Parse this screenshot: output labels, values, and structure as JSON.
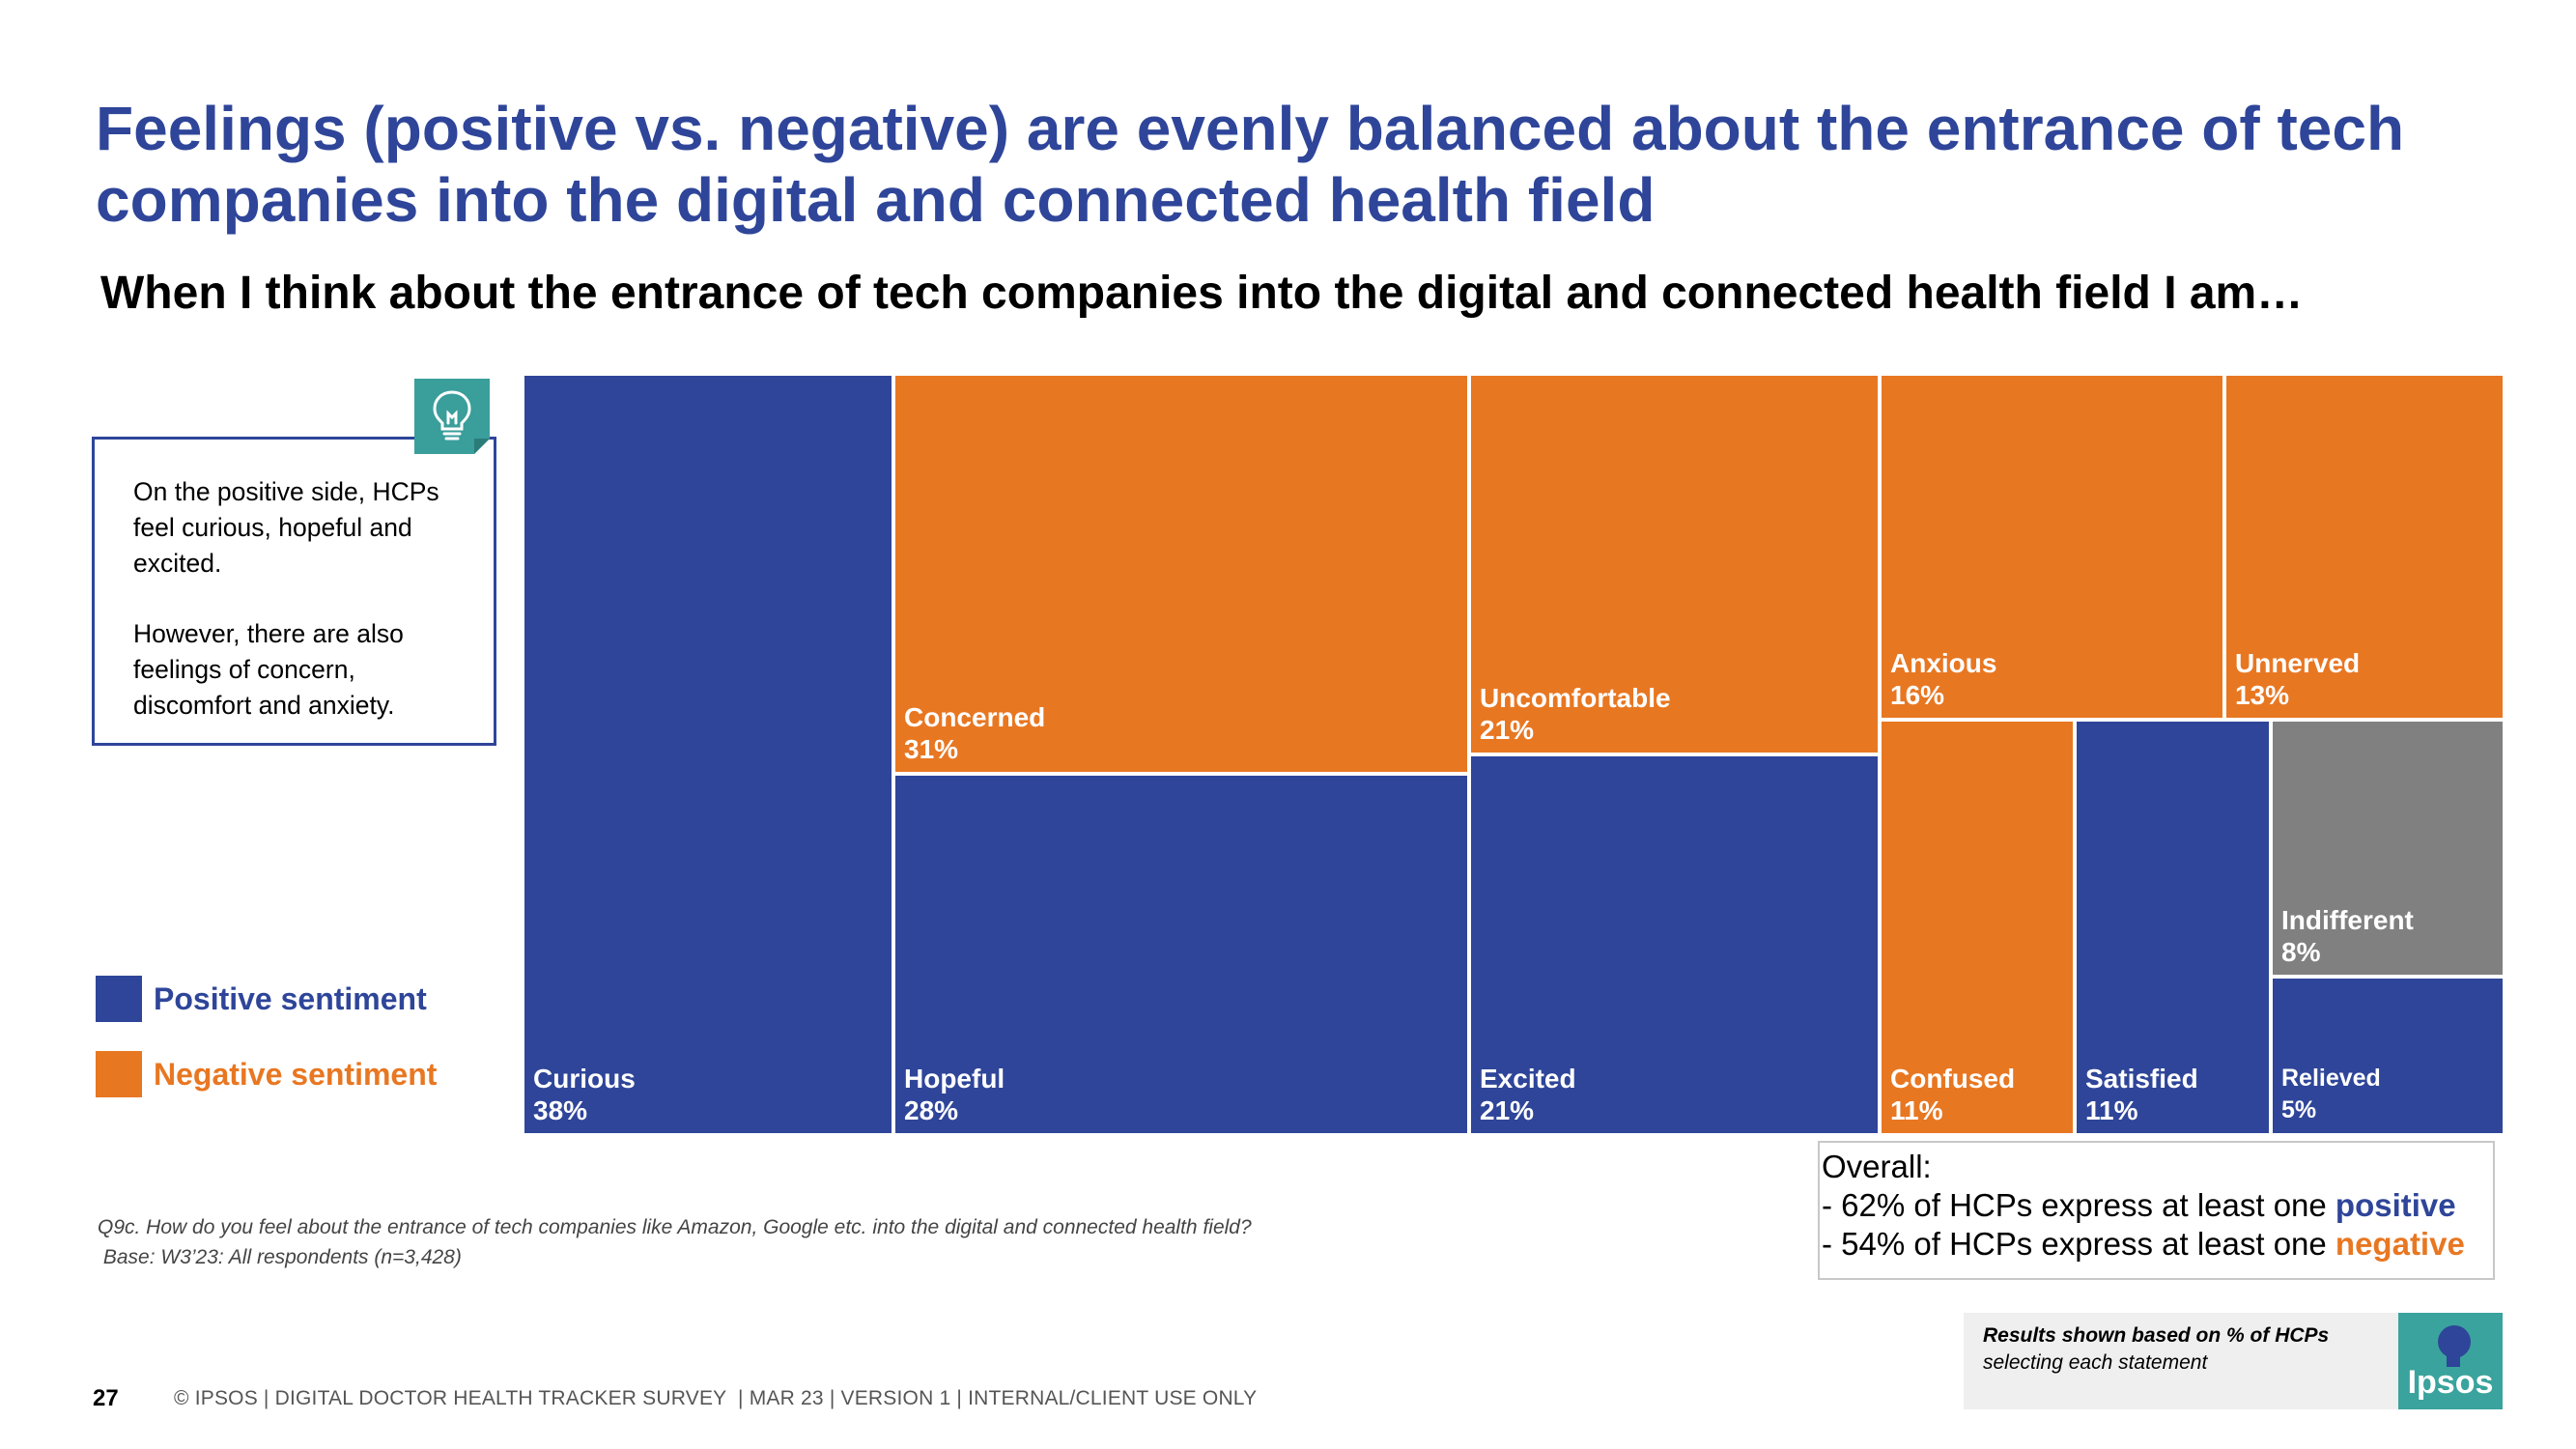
{
  "title": "Feelings (positive vs. negative) are evenly balanced about the entrance of tech companies into the digital and connected health field",
  "subtitle": "When I think about the entrance of tech companies into the digital and connected health field I am…",
  "callout": {
    "p1": "On the positive side, HCPs feel curious, hopeful and excited.",
    "p2": "However, there are also feelings of concern, discomfort and anxiety.",
    "icon": "lightbulb-icon"
  },
  "legend": {
    "positive": {
      "label": "Positive sentiment",
      "color": "#2E4599"
    },
    "negative": {
      "label": "Negative sentiment",
      "color": "#E87722"
    }
  },
  "colors": {
    "positive": "#2E4599",
    "negative": "#E87722",
    "neutral": "#808080"
  },
  "chart_data": {
    "type": "treemap",
    "unit": "% of HCPs",
    "items": [
      {
        "name": "Curious",
        "value": 38,
        "label": "38%",
        "sentiment": "positive"
      },
      {
        "name": "Concerned",
        "value": 31,
        "label": "31%",
        "sentiment": "negative"
      },
      {
        "name": "Hopeful",
        "value": 28,
        "label": "28%",
        "sentiment": "positive"
      },
      {
        "name": "Uncomfortable",
        "value": 21,
        "label": "21%",
        "sentiment": "negative"
      },
      {
        "name": "Excited",
        "value": 21,
        "label": "21%",
        "sentiment": "positive"
      },
      {
        "name": "Anxious",
        "value": 16,
        "label": "16%",
        "sentiment": "negative"
      },
      {
        "name": "Unnerved",
        "value": 13,
        "label": "13%",
        "sentiment": "negative"
      },
      {
        "name": "Confused",
        "value": 11,
        "label": "11%",
        "sentiment": "negative"
      },
      {
        "name": "Satisfied",
        "value": 11,
        "label": "11%",
        "sentiment": "positive"
      },
      {
        "name": "Indifferent",
        "value": 8,
        "label": "8%",
        "sentiment": "neutral"
      },
      {
        "name": "Relieved",
        "value": 5,
        "label": "5%",
        "sentiment": "positive"
      }
    ]
  },
  "overall": {
    "heading": "Overall:",
    "line1_prefix": "- 62% of HCPs express at least one ",
    "line1_keyword": "positive",
    "line2_prefix": "- 54% of HCPs express at least one ",
    "line2_keyword": "negative"
  },
  "source": {
    "question": "Q9c. How do you feel about the entrance of tech companies like Amazon, Google etc. into the digital and connected health field?",
    "base": " Base: W3’23: All respondents (n=3,428)"
  },
  "results_note": {
    "bold": "Results shown based on % of HCPs",
    "rest": "selecting each statement"
  },
  "logo_text": "Ipsos",
  "page_number": "27",
  "footer": "© IPSOS | DIGITAL DOCTOR HEALTH TRACKER SURVEY  | MAR 23 | VERSION 1 | INTERNAL/CLIENT USE ONLY"
}
